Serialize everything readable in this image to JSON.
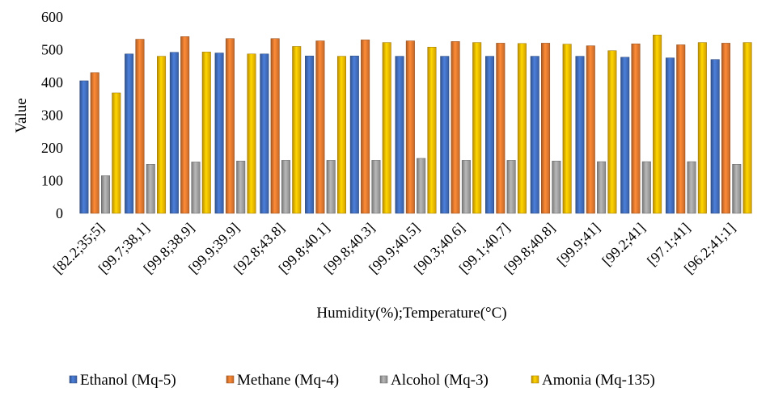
{
  "chart_data": {
    "type": "bar",
    "xlabel": "Humidity(%);Temperature(°C)",
    "ylabel": "Value",
    "ylim": [
      0,
      600
    ],
    "yticks": [
      0,
      100,
      200,
      300,
      400,
      500,
      600
    ],
    "grid": false,
    "legend_position": "bottom",
    "categories": [
      "[82.2;35;5]",
      "[99.7;38,1]",
      "[99.8;38.9]",
      "[99.9;39.9]",
      "[92.8;43.8]",
      "[99.8;40.1]",
      "[99.8;40.3]",
      "[99.9;40.5]",
      "[90.3;40.6]",
      "[99.1;40.7]",
      "[99.8;40.8]",
      "[99.9;41]",
      "[99.2;41]",
      "[97.1;41]",
      "[96.2;41;1]"
    ],
    "series": [
      {
        "name": "Ethanol (Mq-5)",
        "color": "#4472C4",
        "values": [
          405,
          487,
          492,
          490,
          487,
          481,
          481,
          480,
          480,
          480,
          480,
          480,
          477,
          475,
          470
        ]
      },
      {
        "name": "Methane (Mq-4)",
        "color": "#ED7D31",
        "values": [
          430,
          532,
          540,
          534,
          534,
          527,
          530,
          527,
          525,
          520,
          520,
          512,
          518,
          515,
          520
        ]
      },
      {
        "name": "Alcohol (Mq-3)",
        "color": "#A5A5A5",
        "values": [
          115,
          150,
          157,
          160,
          162,
          162,
          162,
          168,
          162,
          162,
          160,
          158,
          158,
          158,
          150
        ]
      },
      {
        "name": "Amonia (Mq-135)",
        "color": "#FFC000",
        "values": [
          368,
          480,
          493,
          487,
          510,
          480,
          522,
          508,
          522,
          519,
          517,
          497,
          545,
          522,
          522
        ]
      }
    ]
  }
}
